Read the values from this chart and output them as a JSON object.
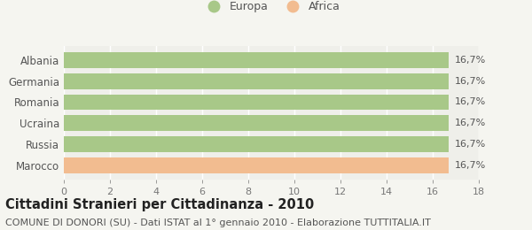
{
  "categories": [
    "Albania",
    "Germania",
    "Romania",
    "Ucraina",
    "Russia",
    "Marocco"
  ],
  "values": [
    16.7,
    16.7,
    16.7,
    16.7,
    16.7,
    16.7
  ],
  "bar_colors": [
    "#a8c888",
    "#a8c888",
    "#a8c888",
    "#a8c888",
    "#a8c888",
    "#f2bc90"
  ],
  "legend_colors": {
    "Europa": "#a8c888",
    "Africa": "#f2bc90"
  },
  "labels": [
    "16,7%",
    "16,7%",
    "16,7%",
    "16,7%",
    "16,7%",
    "16,7%"
  ],
  "xlim": [
    0,
    18
  ],
  "xticks": [
    0,
    2,
    4,
    6,
    8,
    10,
    12,
    14,
    16,
    18
  ],
  "title": "Cittadini Stranieri per Cittadinanza - 2010",
  "subtitle": "COMUNE DI DONORI (SU) - Dati ISTAT al 1° gennaio 2010 - Elaborazione TUTTITALIA.IT",
  "background_color": "#f5f5f0",
  "bar_background": "#efefea",
  "grid_color": "#ffffff",
  "label_fontsize": 8,
  "ytick_fontsize": 8.5,
  "xtick_fontsize": 8,
  "title_fontsize": 10.5,
  "subtitle_fontsize": 8
}
